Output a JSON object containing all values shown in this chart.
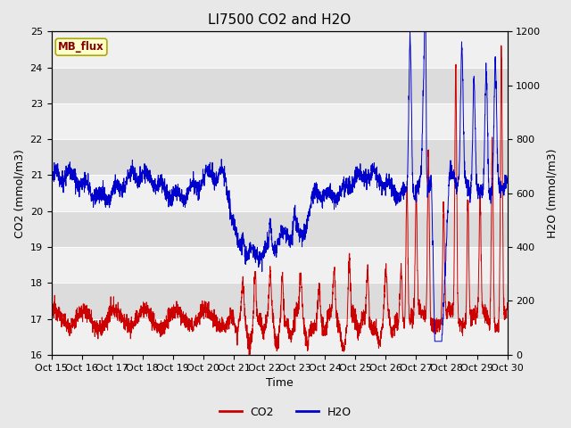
{
  "title": "LI7500 CO2 and H2O",
  "xlabel": "Time",
  "ylabel_left": "CO2 (mmol/m3)",
  "ylabel_right": "H2O (mmol/m3)",
  "ylim_left": [
    16.0,
    25.0
  ],
  "ylim_right": [
    0,
    1200
  ],
  "yticks_left": [
    16.0,
    17.0,
    18.0,
    19.0,
    20.0,
    21.0,
    22.0,
    23.0,
    24.0,
    25.0
  ],
  "yticks_right": [
    0,
    200,
    400,
    600,
    800,
    1000,
    1200
  ],
  "xtick_labels": [
    "Oct 15",
    "Oct 16",
    "Oct 17",
    "Oct 18",
    "Oct 19",
    "Oct 20",
    "Oct 21",
    "Oct 22",
    "Oct 23",
    "Oct 24",
    "Oct 25",
    "Oct 26",
    "Oct 27",
    "Oct 28",
    "Oct 29",
    "Oct 30"
  ],
  "co2_color": "#cc0000",
  "h2o_color": "#0000cc",
  "fig_facecolor": "#e8e8e8",
  "plot_bg_light": "#f0f0f0",
  "plot_bg_dark": "#dcdcdc",
  "annotation_text": "MB_flux",
  "annotation_bg": "#ffffcc",
  "annotation_border": "#aaaa00",
  "legend_co2": "CO2",
  "legend_h2o": "H2O",
  "title_fontsize": 11,
  "axis_fontsize": 9,
  "tick_fontsize": 8,
  "n_days": 15,
  "n_pts": 3000
}
